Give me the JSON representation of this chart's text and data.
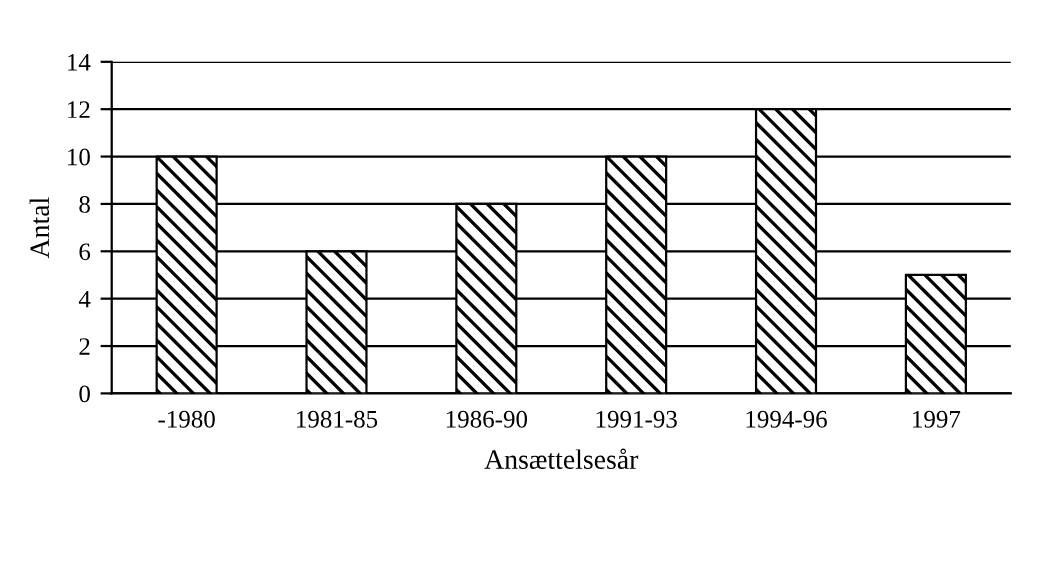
{
  "chart_data": {
    "type": "bar",
    "xlabel": "Ansættelsesår",
    "ylabel": "Antal",
    "categories": [
      "-1980",
      "1981-85",
      "1986-90",
      "1991-93",
      "1994-96",
      "1997"
    ],
    "values": [
      10,
      6,
      8,
      10,
      12,
      5
    ],
    "color": "#000000",
    "ylim": [
      0,
      14
    ],
    "yticks": [
      0,
      2,
      4,
      6,
      8,
      10,
      12,
      14
    ],
    "grid": "y"
  }
}
